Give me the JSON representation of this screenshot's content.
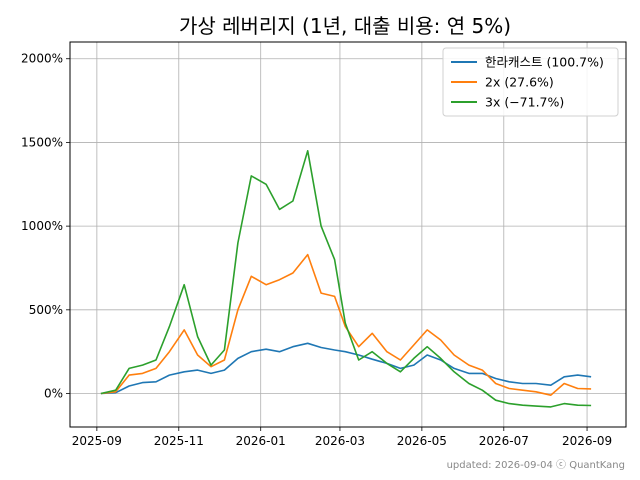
{
  "chart_data": {
    "type": "line",
    "title": "가상 레버리지 (1년, 대출 비용: 연 5%)",
    "xlabel": "",
    "ylabel": "",
    "x_ticks": [
      "2025-09",
      "2025-11",
      "2026-01",
      "2026-03",
      "2026-05",
      "2026-07",
      "2026-09"
    ],
    "y_ticks": [
      "0%",
      "500%",
      "1000%",
      "1500%",
      "2000%"
    ],
    "y_unit": "%",
    "xlim": [
      "2025-08-12",
      "2026-09-30"
    ],
    "ylim": [
      -200,
      2100
    ],
    "grid": true,
    "legend_position": "top-right",
    "series": [
      {
        "name": "한라캐스트 (100.7%)",
        "color": "#1f77b4",
        "points": [
          [
            "2025-09-04",
            0
          ],
          [
            "2025-09-15",
            5
          ],
          [
            "2025-09-25",
            45
          ],
          [
            "2025-10-05",
            65
          ],
          [
            "2025-10-15",
            70
          ],
          [
            "2025-10-25",
            110
          ],
          [
            "2025-11-05",
            130
          ],
          [
            "2025-11-15",
            140
          ],
          [
            "2025-11-25",
            120
          ],
          [
            "2025-12-05",
            140
          ],
          [
            "2025-12-15",
            210
          ],
          [
            "2025-12-25",
            250
          ],
          [
            "2026-01-05",
            265
          ],
          [
            "2026-01-15",
            250
          ],
          [
            "2026-01-25",
            280
          ],
          [
            "2026-02-05",
            300
          ],
          [
            "2026-02-15",
            275
          ],
          [
            "2026-02-25",
            260
          ],
          [
            "2026-03-05",
            250
          ],
          [
            "2026-03-15",
            230
          ],
          [
            "2026-03-25",
            205
          ],
          [
            "2026-04-05",
            180
          ],
          [
            "2026-04-15",
            150
          ],
          [
            "2026-04-25",
            170
          ],
          [
            "2026-05-05",
            230
          ],
          [
            "2026-05-15",
            200
          ],
          [
            "2026-05-25",
            150
          ],
          [
            "2026-06-05",
            120
          ],
          [
            "2026-06-15",
            120
          ],
          [
            "2026-06-25",
            90
          ],
          [
            "2026-07-05",
            70
          ],
          [
            "2026-07-15",
            60
          ],
          [
            "2026-07-25",
            60
          ],
          [
            "2026-08-05",
            50
          ],
          [
            "2026-08-15",
            100
          ],
          [
            "2026-08-25",
            110
          ],
          [
            "2026-09-04",
            100
          ]
        ]
      },
      {
        "name": "2x (27.6%)",
        "color": "#ff7f0e",
        "points": [
          [
            "2025-09-04",
            0
          ],
          [
            "2025-09-15",
            10
          ],
          [
            "2025-09-25",
            110
          ],
          [
            "2025-10-05",
            120
          ],
          [
            "2025-10-15",
            150
          ],
          [
            "2025-10-25",
            250
          ],
          [
            "2025-11-05",
            380
          ],
          [
            "2025-11-15",
            230
          ],
          [
            "2025-11-25",
            160
          ],
          [
            "2025-12-05",
            200
          ],
          [
            "2025-12-15",
            500
          ],
          [
            "2025-12-25",
            700
          ],
          [
            "2026-01-05",
            650
          ],
          [
            "2026-01-15",
            680
          ],
          [
            "2026-01-25",
            720
          ],
          [
            "2026-02-05",
            830
          ],
          [
            "2026-02-15",
            600
          ],
          [
            "2026-02-25",
            580
          ],
          [
            "2026-03-05",
            400
          ],
          [
            "2026-03-15",
            280
          ],
          [
            "2026-03-25",
            360
          ],
          [
            "2026-04-05",
            250
          ],
          [
            "2026-04-15",
            200
          ],
          [
            "2026-04-25",
            290
          ],
          [
            "2026-05-05",
            380
          ],
          [
            "2026-05-15",
            320
          ],
          [
            "2026-05-25",
            230
          ],
          [
            "2026-06-05",
            170
          ],
          [
            "2026-06-15",
            140
          ],
          [
            "2026-06-25",
            60
          ],
          [
            "2026-07-05",
            30
          ],
          [
            "2026-07-15",
            20
          ],
          [
            "2026-07-25",
            10
          ],
          [
            "2026-08-05",
            -10
          ],
          [
            "2026-08-15",
            60
          ],
          [
            "2026-08-25",
            30
          ],
          [
            "2026-09-04",
            27.6
          ]
        ]
      },
      {
        "name": "3x (−71.7%)",
        "color": "#2ca02c",
        "points": [
          [
            "2025-09-04",
            0
          ],
          [
            "2025-09-15",
            20
          ],
          [
            "2025-09-25",
            150
          ],
          [
            "2025-10-05",
            170
          ],
          [
            "2025-10-15",
            200
          ],
          [
            "2025-10-25",
            400
          ],
          [
            "2025-11-05",
            650
          ],
          [
            "2025-11-15",
            340
          ],
          [
            "2025-11-25",
            170
          ],
          [
            "2025-12-05",
            260
          ],
          [
            "2025-12-15",
            900
          ],
          [
            "2025-12-25",
            1300
          ],
          [
            "2026-01-05",
            1250
          ],
          [
            "2026-01-15",
            1100
          ],
          [
            "2026-01-25",
            1150
          ],
          [
            "2026-02-05",
            1450
          ],
          [
            "2026-02-15",
            1000
          ],
          [
            "2026-02-25",
            800
          ],
          [
            "2026-03-05",
            420
          ],
          [
            "2026-03-15",
            200
          ],
          [
            "2026-03-25",
            250
          ],
          [
            "2026-04-05",
            180
          ],
          [
            "2026-04-15",
            130
          ],
          [
            "2026-04-25",
            210
          ],
          [
            "2026-05-05",
            280
          ],
          [
            "2026-05-15",
            210
          ],
          [
            "2026-05-25",
            130
          ],
          [
            "2026-06-05",
            60
          ],
          [
            "2026-06-15",
            20
          ],
          [
            "2026-06-25",
            -40
          ],
          [
            "2026-07-05",
            -60
          ],
          [
            "2026-07-15",
            -70
          ],
          [
            "2026-07-25",
            -75
          ],
          [
            "2026-08-05",
            -80
          ],
          [
            "2026-08-15",
            -60
          ],
          [
            "2026-08-25",
            -70
          ],
          [
            "2026-09-04",
            -71.7
          ]
        ]
      }
    ],
    "footer": "updated: 2026-09-04 ⓒ QuantKang"
  }
}
